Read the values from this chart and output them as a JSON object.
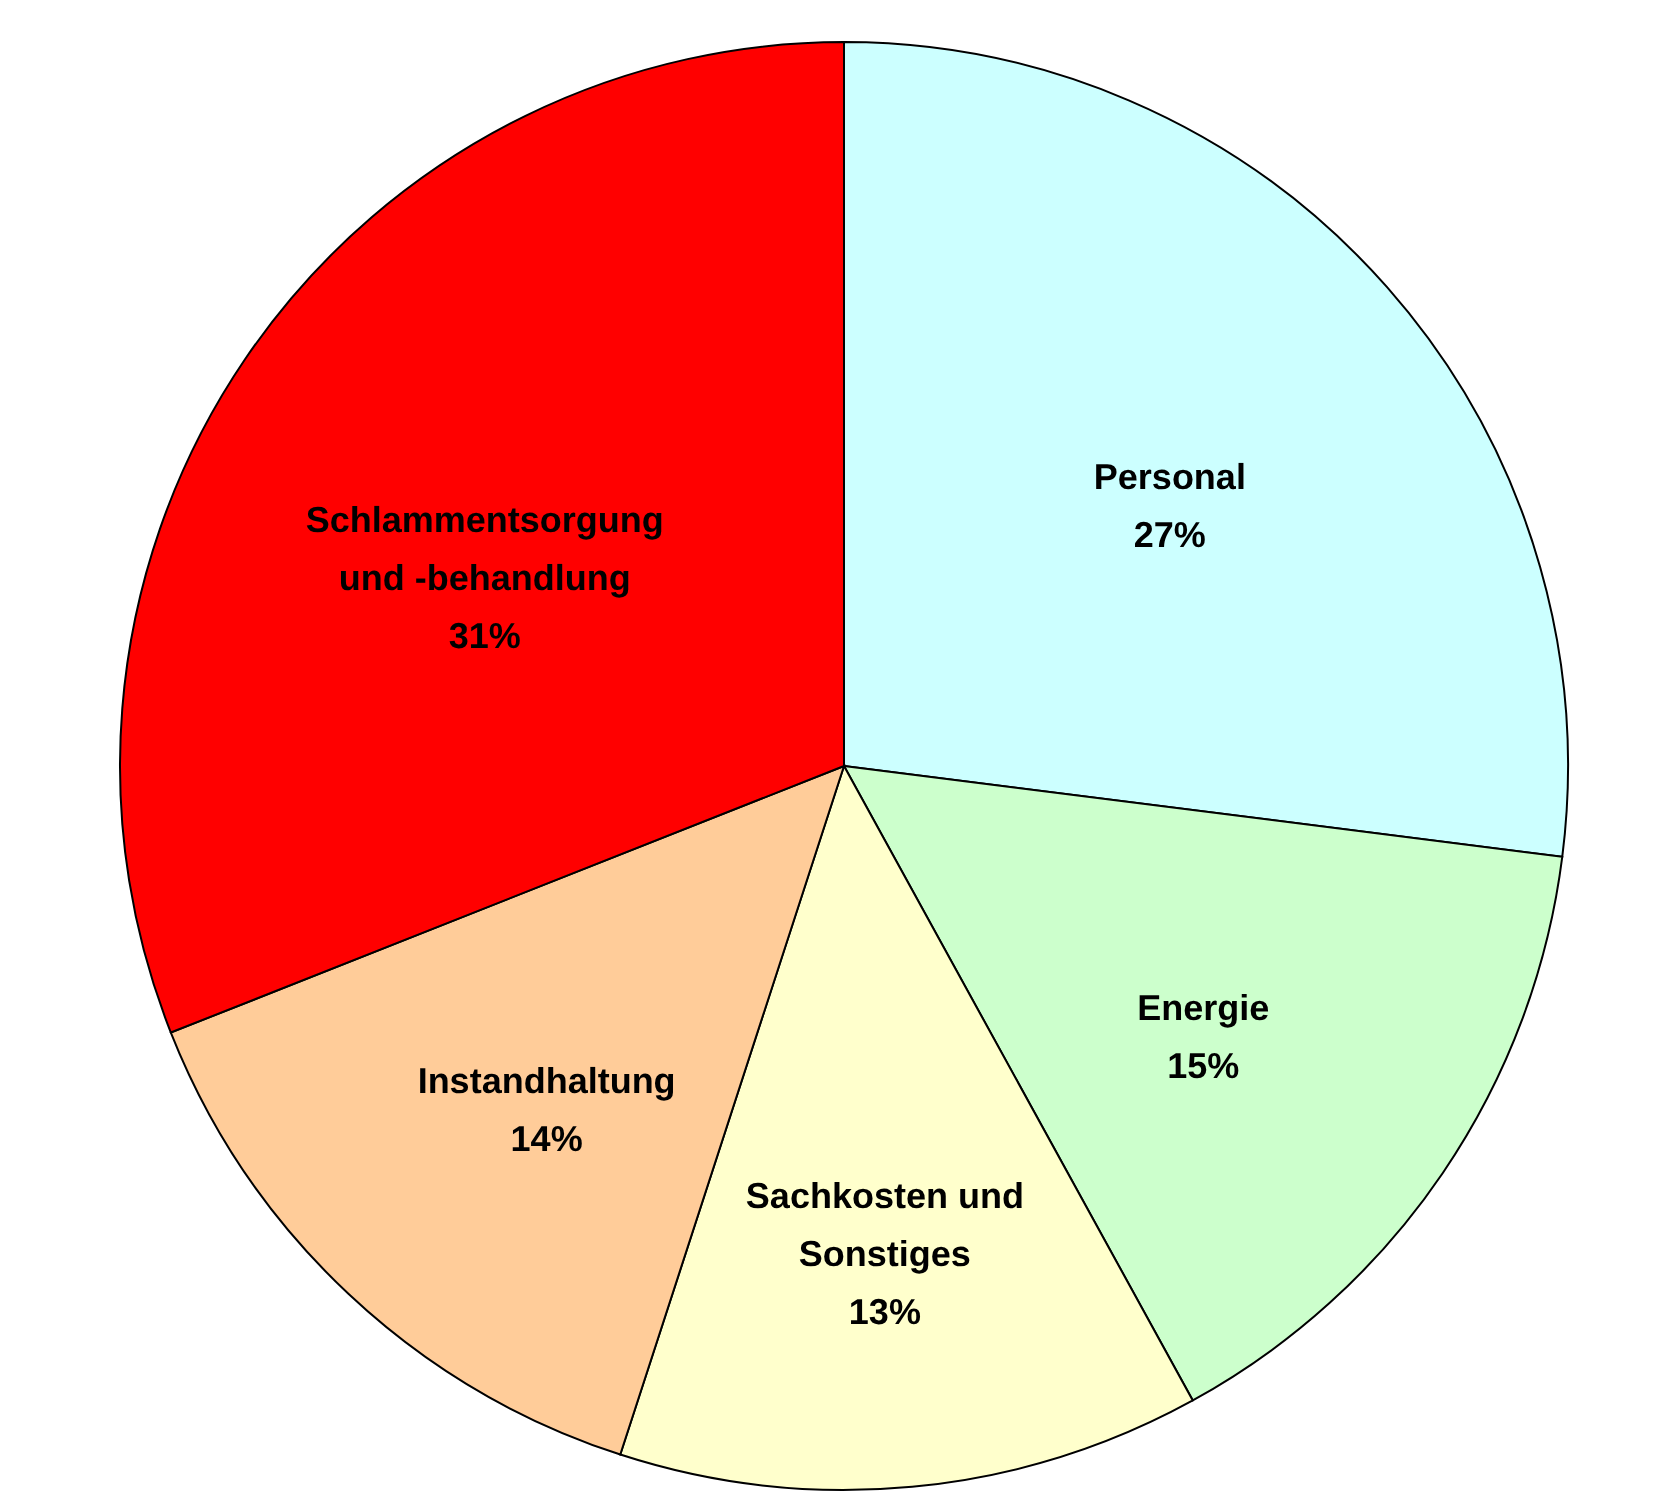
{
  "chart_data": {
    "type": "pie",
    "categories": [
      "Personal",
      "Energie",
      "Sachkosten und Sonstiges",
      "Instandhaltung",
      "Schlammentsorgung und -behandlung"
    ],
    "values": [
      27,
      15,
      13,
      14,
      31
    ],
    "value_labels": [
      "27%",
      "15%",
      "13%",
      "14%",
      "31%"
    ],
    "colors": [
      "#ccffff",
      "#ccffcc",
      "#ffffcc",
      "#ffcc99",
      "#ff0000"
    ]
  }
}
